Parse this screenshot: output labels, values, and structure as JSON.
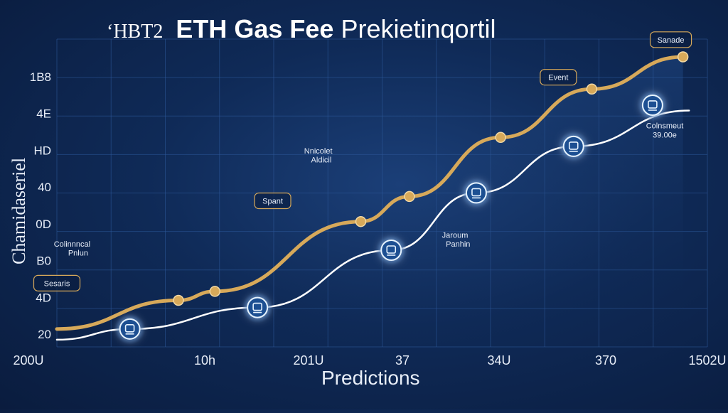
{
  "title_prefix": "‘HBT2",
  "title_main": "ETH Gas Fee",
  "title_rest": "Prekietinqortil",
  "xlabel": "Predictions",
  "ylabel": "Chamidaseriel",
  "chart_data": {
    "type": "line",
    "x_tick_labels": [
      "200U",
      "10h",
      "201U",
      "37",
      "34U",
      "370",
      "1502U"
    ],
    "y_tick_labels": [
      "20",
      "4D",
      "B0",
      "0D",
      "40",
      "HD",
      "4E",
      "1B8"
    ],
    "ylim": [
      0,
      8
    ],
    "xlim": [
      0,
      10
    ],
    "grid": true,
    "series": [
      {
        "color": "#d7a95a",
        "x": [
          0,
          2.0,
          2.6,
          5.0,
          5.8,
          7.3,
          8.8,
          10.3
        ],
        "y": [
          0.5,
          1.3,
          1.55,
          3.5,
          4.2,
          5.85,
          7.2,
          8.1
        ],
        "markers": [
          {
            "x": 2.0,
            "y": 1.3
          },
          {
            "x": 2.6,
            "y": 1.55
          },
          {
            "x": 5.0,
            "y": 3.5
          },
          {
            "x": 5.8,
            "y": 4.2
          },
          {
            "x": 7.3,
            "y": 5.85
          },
          {
            "x": 8.8,
            "y": 7.2
          },
          {
            "x": 10.3,
            "y": 8.1
          }
        ]
      },
      {
        "color": "#ffffff",
        "x": [
          0,
          1.2,
          3.3,
          5.5,
          6.9,
          8.5,
          10.4
        ],
        "y": [
          0.2,
          0.5,
          1.1,
          2.7,
          4.3,
          5.6,
          6.6
        ],
        "icons": [
          {
            "x": 1.2,
            "y": 0.5
          },
          {
            "x": 3.3,
            "y": 1.1
          },
          {
            "x": 5.5,
            "y": 2.7
          },
          {
            "x": 6.9,
            "y": 4.3
          },
          {
            "x": 8.5,
            "y": 5.6
          },
          {
            "x": 9.8,
            "y": 6.75
          }
        ]
      }
    ],
    "annotations": [
      {
        "text": "Sesaris",
        "x": 0.0,
        "y": 1.7,
        "boxed": true
      },
      {
        "text": "Colinnncal",
        "x": 0.25,
        "y": 2.8,
        "boxed": false
      },
      {
        "text": "Pnlun",
        "x": 0.35,
        "y": 2.55,
        "boxed": false
      },
      {
        "text": "Spant",
        "x": 3.55,
        "y": 4.0,
        "boxed": true
      },
      {
        "text": "Nnicolet",
        "x": 4.3,
        "y": 5.4,
        "boxed": false
      },
      {
        "text": "Aldicil",
        "x": 4.35,
        "y": 5.15,
        "boxed": false
      },
      {
        "text": "Jaroum",
        "x": 6.55,
        "y": 3.05,
        "boxed": false
      },
      {
        "text": "Panhin",
        "x": 6.6,
        "y": 2.8,
        "boxed": false
      },
      {
        "text": "Event",
        "x": 8.25,
        "y": 7.45,
        "boxed": true
      },
      {
        "text": "Colnsmeut",
        "x": 10.0,
        "y": 6.1,
        "boxed": false
      },
      {
        "text": "39.00e",
        "x": 10.0,
        "y": 5.85,
        "boxed": false
      },
      {
        "text": "Sanade",
        "x": 10.1,
        "y": 8.5,
        "boxed": true
      }
    ]
  }
}
